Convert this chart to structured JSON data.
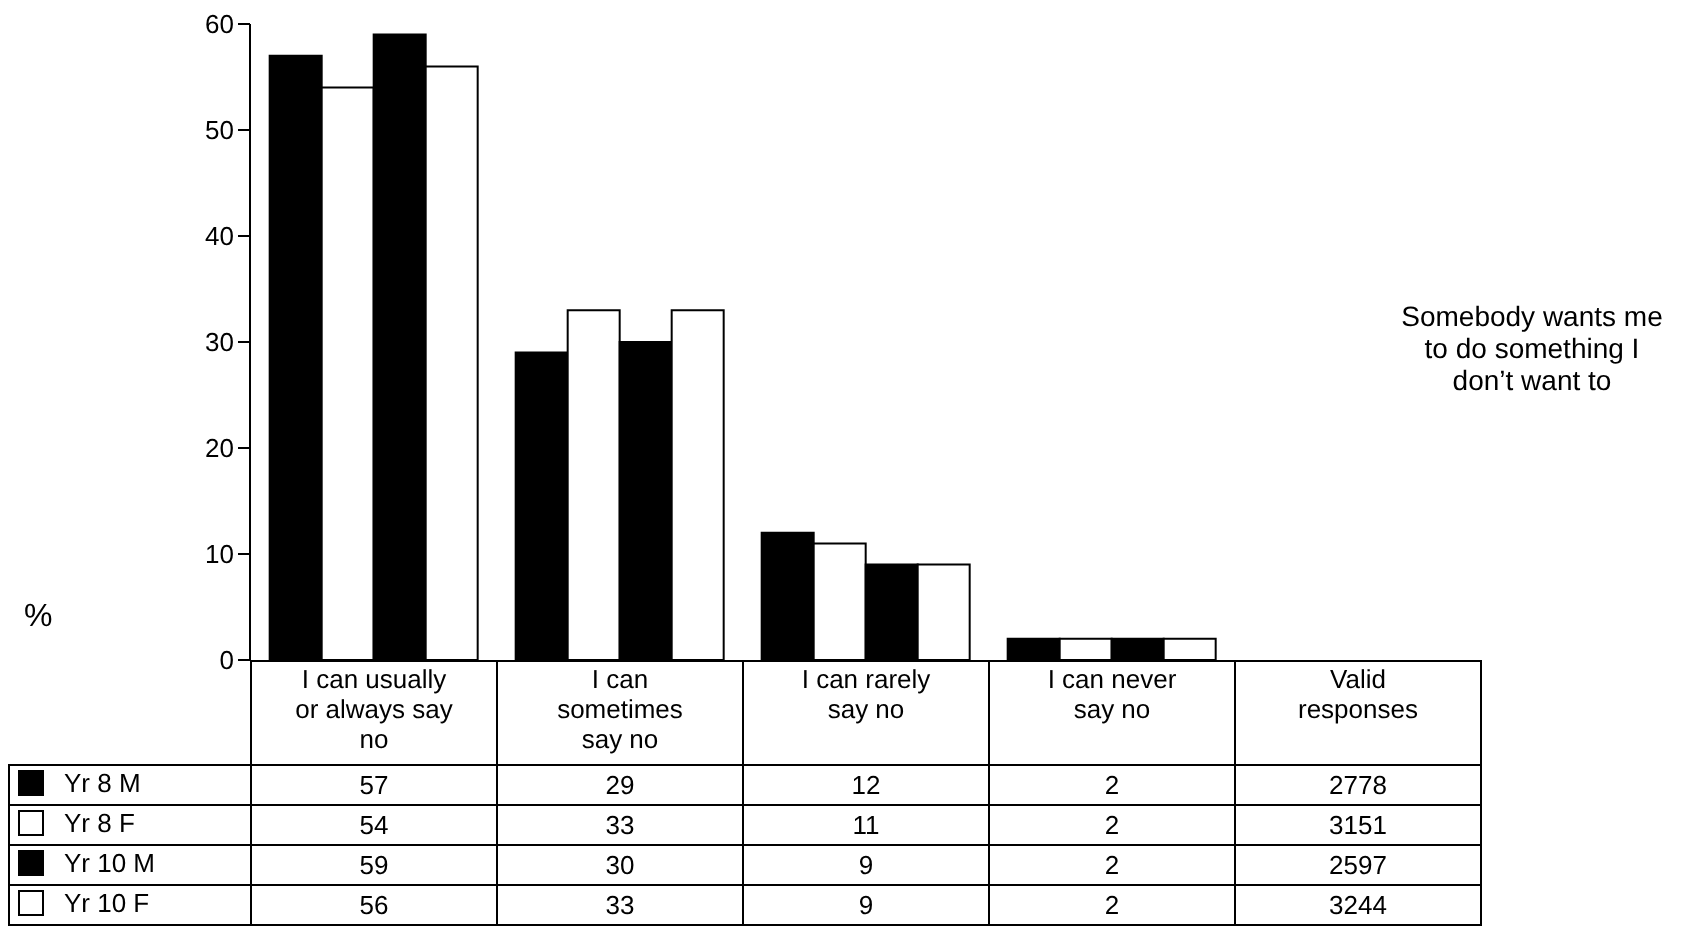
{
  "chart_data": {
    "type": "bar",
    "title": "Somebody wants me to do something I don’t want to",
    "ylabel": "%",
    "categories": [
      "I can usually or always say no",
      "I can sometimes say no",
      "I can rarely say no",
      "I can never say no"
    ],
    "series": [
      {
        "name": "Yr 8 M",
        "color": "#000000",
        "values": [
          57,
          29,
          12,
          2
        ]
      },
      {
        "name": "Yr 8 F",
        "color": "#ffffff",
        "values": [
          54,
          33,
          11,
          2
        ]
      },
      {
        "name": "Yr 10 M",
        "color": "#000000",
        "values": [
          59,
          30,
          9,
          2
        ]
      },
      {
        "name": "Yr 10 F",
        "color": "#ffffff",
        "values": [
          56,
          33,
          9,
          2
        ]
      }
    ],
    "ylim": [
      0,
      60
    ],
    "yticks": [
      0,
      10,
      20,
      30,
      40,
      50,
      60
    ],
    "grid": false,
    "legend": "bottom",
    "data_labels": true,
    "annotations": [
      "Valid responses",
      "2778",
      "3151",
      "2597",
      "3244"
    ]
  }
}
